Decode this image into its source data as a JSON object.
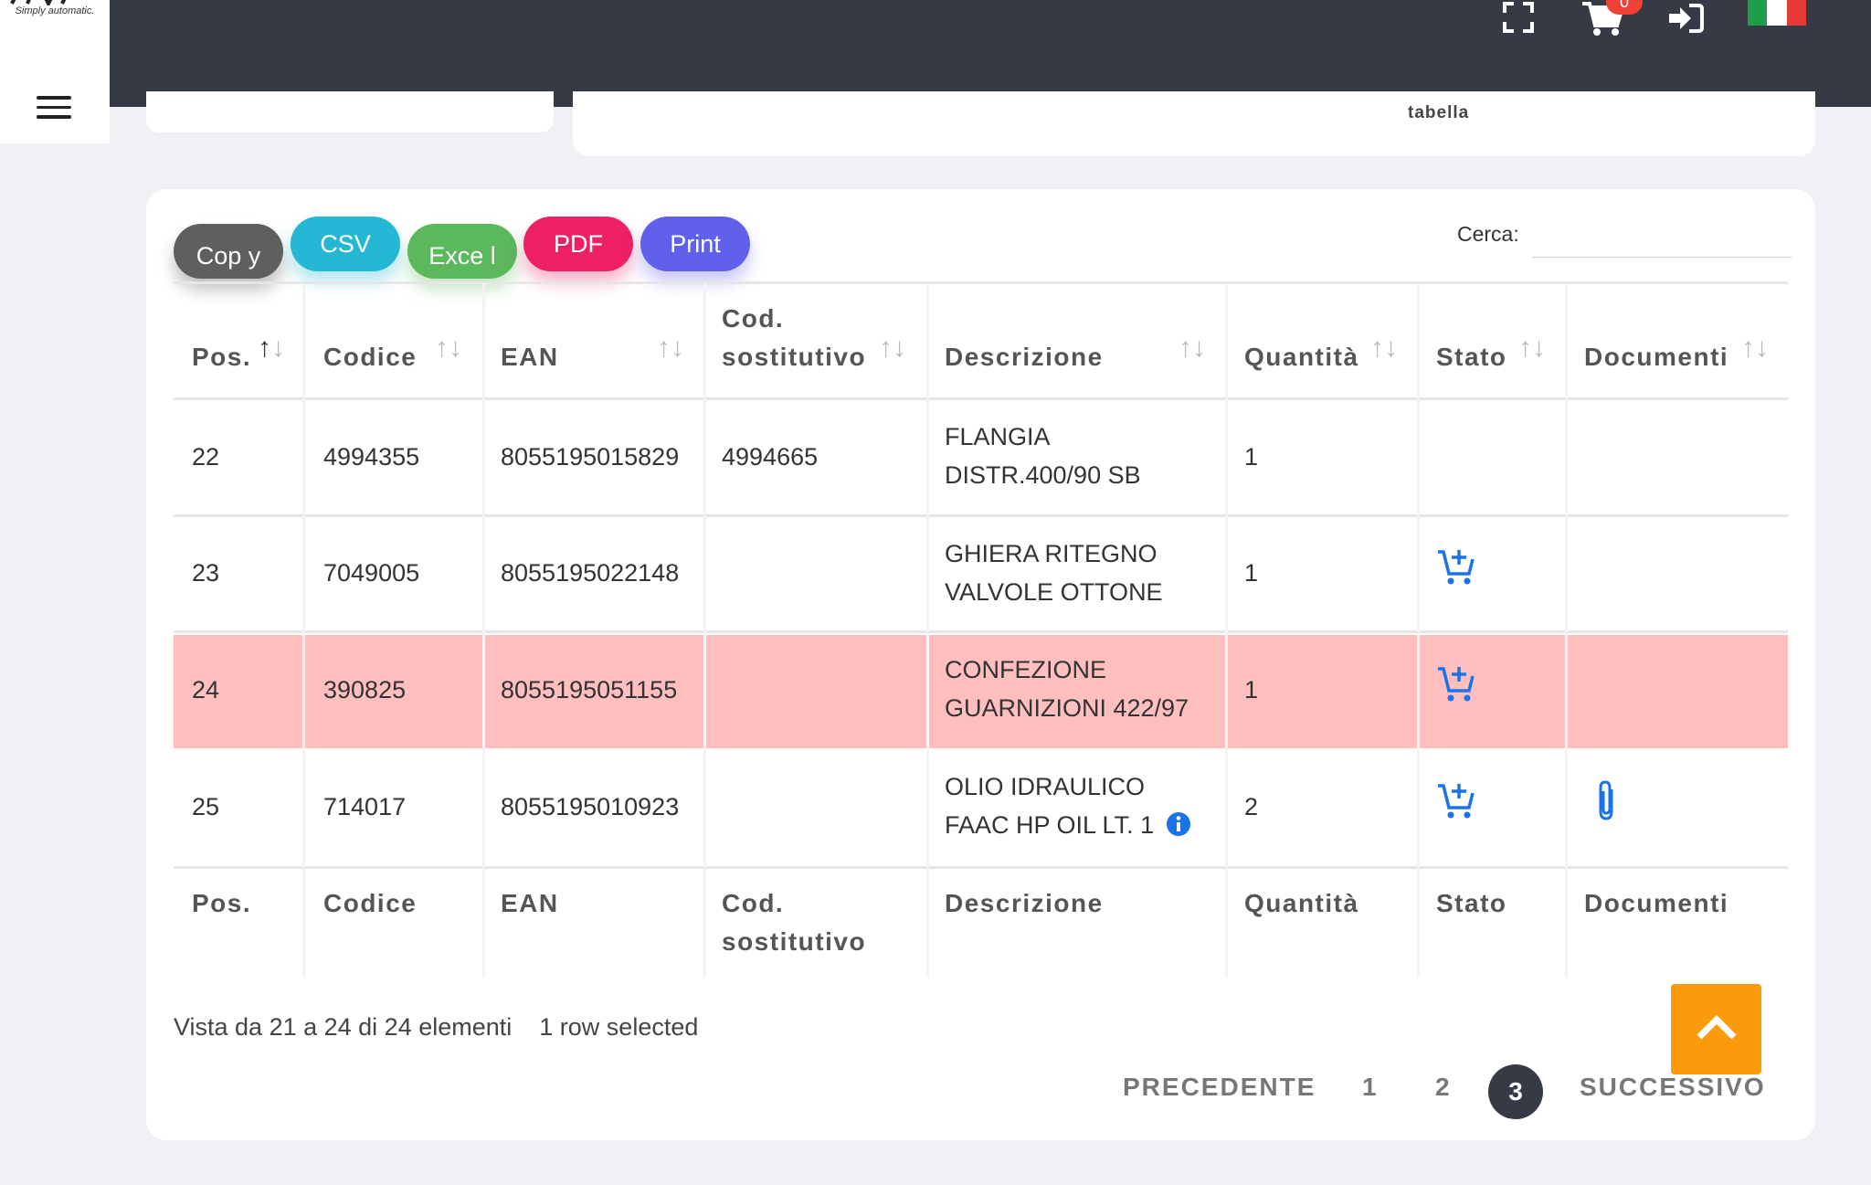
{
  "header": {
    "logo_tagline": "Simply automatic.",
    "cart_count": "0",
    "menu_label": "menu"
  },
  "top_card": {
    "tabella_label": "tabella"
  },
  "toolbar": {
    "copy_label": "Cop y",
    "csv_label": "CSV",
    "excel_label": "Exce l",
    "pdf_label": "PDF",
    "print_label": "Print",
    "search_label": "Cerca:",
    "search_value": ""
  },
  "table": {
    "headers": {
      "pos": "Pos.",
      "codice": "Codice",
      "ean": "EAN",
      "cod_sost_line1": "Cod.",
      "cod_sost_line2": "sostitutivo",
      "descrizione": "Descrizione",
      "quantita": "Quantità",
      "stato": "Stato",
      "documenti": "Documenti"
    },
    "rows": [
      {
        "pos": "22",
        "codice": "4994355",
        "ean": "8055195015829",
        "cod_sost": "4994665",
        "desc1": "FLANGIA",
        "desc2": "DISTR.400/90 SB",
        "qty": "1"
      },
      {
        "pos": "23",
        "codice": "7049005",
        "ean": "8055195022148",
        "cod_sost": "",
        "desc1": "GHIERA RITEGNO",
        "desc2": "VALVOLE OTTONE",
        "qty": "1"
      },
      {
        "pos": "24",
        "codice": "390825",
        "ean": "8055195051155",
        "cod_sost": "",
        "desc1": "CONFEZIONE",
        "desc2": "GUARNIZIONI 422/97",
        "qty": "1"
      },
      {
        "pos": "25",
        "codice": "714017",
        "ean": "8055195010923",
        "cod_sost": "",
        "desc1": "OLIO IDRAULICO",
        "desc2": "FAAC HP OIL LT. 1",
        "qty": "2"
      }
    ],
    "colors": {
      "selected_row": "#ffbfbf",
      "icon_blue": "#1a73e8"
    }
  },
  "footer": {
    "info": "Vista da 21 a 24 di 24 elementi",
    "selected": "1 row selected",
    "prev": "PRECEDENTE",
    "page1": "1",
    "page2": "2",
    "page3": "3",
    "next": "SUCCESSIVO"
  }
}
